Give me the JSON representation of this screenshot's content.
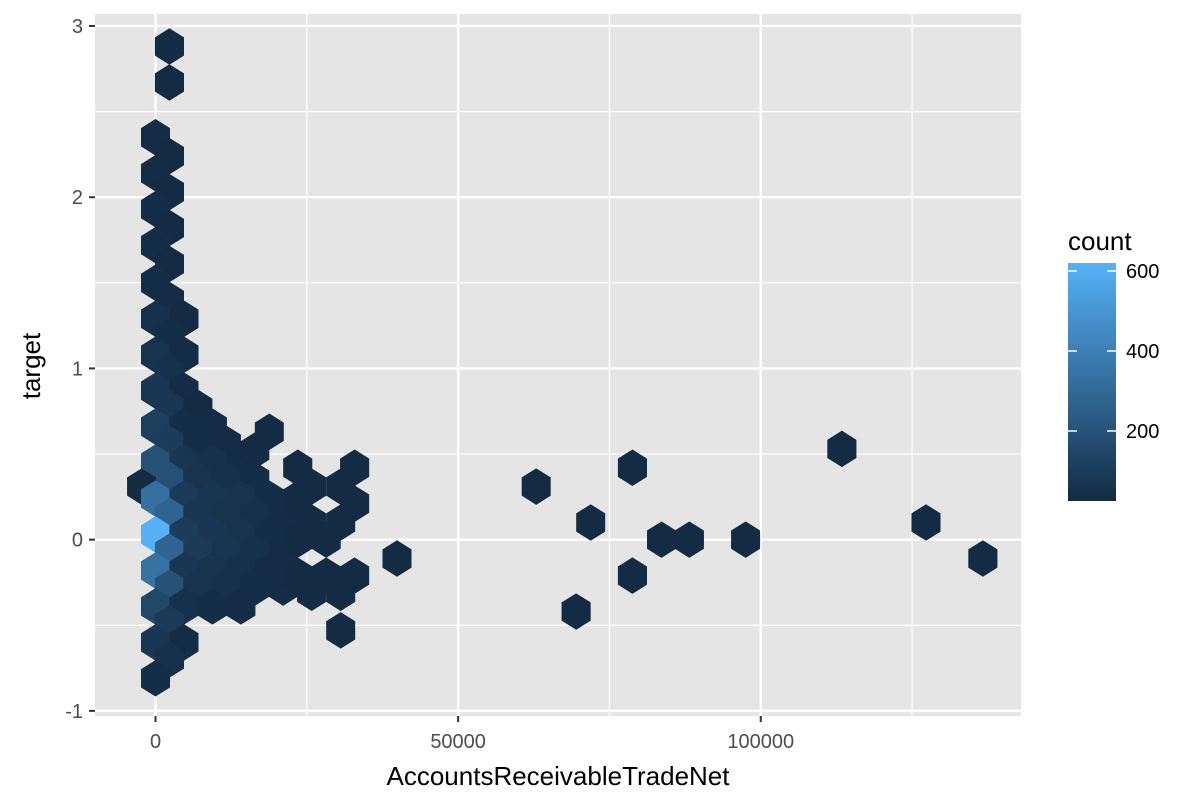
{
  "chart_data": {
    "type": "heatmap",
    "geom": "hexbin",
    "title": "",
    "xlabel": "AccountsReceivableTradeNet",
    "ylabel": "target",
    "xlim": [
      -10000,
      143000
    ],
    "ylim": [
      -1.03,
      3.07
    ],
    "x_ticks": [
      0,
      50000,
      100000
    ],
    "x_tick_labels": [
      "0",
      "50000",
      "100000"
    ],
    "y_ticks": [
      -1,
      0,
      1,
      2,
      3
    ],
    "y_tick_labels": [
      "-1",
      "0",
      "1",
      "2",
      "3"
    ],
    "x_minor_ticks": [
      25000,
      75000,
      125000
    ],
    "y_minor_ticks": [
      -0.5,
      0.5,
      1.5,
      2.5
    ],
    "grid": true,
    "panel_background": "#e5e5e5",
    "grid_color": "#ffffff",
    "hex_width": 4700,
    "hex_height": 0.209,
    "legend": {
      "title": "count",
      "placement": "right",
      "min": 25,
      "max": 620,
      "ticks": [
        200,
        400,
        600
      ],
      "tick_labels": [
        "200",
        "400",
        "600"
      ],
      "low_color": "#132b43",
      "high_color": "#56b1f7"
    },
    "hexes": [
      {
        "x": 2300,
        "y": 2.88,
        "count": 25
      },
      {
        "x": 2300,
        "y": 2.67,
        "count": 25
      },
      {
        "x": 0,
        "y": 2.35,
        "count": 30
      },
      {
        "x": 2300,
        "y": 2.24,
        "count": 25
      },
      {
        "x": 0,
        "y": 2.14,
        "count": 30
      },
      {
        "x": 2300,
        "y": 2.03,
        "count": 25
      },
      {
        "x": 0,
        "y": 1.93,
        "count": 40
      },
      {
        "x": 2300,
        "y": 1.82,
        "count": 25
      },
      {
        "x": 0,
        "y": 1.72,
        "count": 40
      },
      {
        "x": 2300,
        "y": 1.61,
        "count": 25
      },
      {
        "x": 0,
        "y": 1.5,
        "count": 40
      },
      {
        "x": 2300,
        "y": 1.4,
        "count": 30
      },
      {
        "x": 0,
        "y": 1.29,
        "count": 50
      },
      {
        "x": 4700,
        "y": 1.29,
        "count": 25
      },
      {
        "x": 2300,
        "y": 1.19,
        "count": 40
      },
      {
        "x": 0,
        "y": 1.08,
        "count": 60
      },
      {
        "x": 4700,
        "y": 1.08,
        "count": 30
      },
      {
        "x": 2300,
        "y": 0.98,
        "count": 50
      },
      {
        "x": 0,
        "y": 0.87,
        "count": 80
      },
      {
        "x": 4700,
        "y": 0.87,
        "count": 30
      },
      {
        "x": 2300,
        "y": 0.77,
        "count": 80
      },
      {
        "x": 7000,
        "y": 0.77,
        "count": 25
      },
      {
        "x": 0,
        "y": 0.66,
        "count": 110
      },
      {
        "x": 4700,
        "y": 0.66,
        "count": 40
      },
      {
        "x": 9400,
        "y": 0.66,
        "count": 30
      },
      {
        "x": 2300,
        "y": 0.56,
        "count": 100
      },
      {
        "x": 7000,
        "y": 0.56,
        "count": 40
      },
      {
        "x": 11700,
        "y": 0.56,
        "count": 30
      },
      {
        "x": 18800,
        "y": 0.63,
        "count": 25
      },
      {
        "x": 0,
        "y": 0.45,
        "count": 200
      },
      {
        "x": 4700,
        "y": 0.45,
        "count": 70
      },
      {
        "x": 9400,
        "y": 0.45,
        "count": 50
      },
      {
        "x": 14100,
        "y": 0.45,
        "count": 40
      },
      {
        "x": 16400,
        "y": 0.52,
        "count": 25
      },
      {
        "x": 2300,
        "y": 0.35,
        "count": 190
      },
      {
        "x": 7000,
        "y": 0.35,
        "count": 60
      },
      {
        "x": 11700,
        "y": 0.35,
        "count": 50
      },
      {
        "x": 16400,
        "y": 0.35,
        "count": 40
      },
      {
        "x": -2300,
        "y": 0.31,
        "count": 25
      },
      {
        "x": 0,
        "y": 0.24,
        "count": 330
      },
      {
        "x": 4700,
        "y": 0.24,
        "count": 90
      },
      {
        "x": 9400,
        "y": 0.24,
        "count": 70
      },
      {
        "x": 14100,
        "y": 0.24,
        "count": 60
      },
      {
        "x": 18800,
        "y": 0.24,
        "count": 40
      },
      {
        "x": 23500,
        "y": 0.24,
        "count": 25
      },
      {
        "x": 2300,
        "y": 0.14,
        "count": 280
      },
      {
        "x": 7000,
        "y": 0.14,
        "count": 80
      },
      {
        "x": 11700,
        "y": 0.14,
        "count": 60
      },
      {
        "x": 16400,
        "y": 0.14,
        "count": 50
      },
      {
        "x": 21100,
        "y": 0.14,
        "count": 30
      },
      {
        "x": 0,
        "y": 0.03,
        "count": 620
      },
      {
        "x": 4700,
        "y": 0.03,
        "count": 100
      },
      {
        "x": 9400,
        "y": 0.03,
        "count": 80
      },
      {
        "x": 14100,
        "y": 0.03,
        "count": 60
      },
      {
        "x": 18800,
        "y": 0.03,
        "count": 40
      },
      {
        "x": 2300,
        "y": -0.07,
        "count": 280
      },
      {
        "x": 7000,
        "y": -0.07,
        "count": 90
      },
      {
        "x": 11700,
        "y": -0.07,
        "count": 70
      },
      {
        "x": 16400,
        "y": -0.07,
        "count": 50
      },
      {
        "x": 21100,
        "y": -0.07,
        "count": 30
      },
      {
        "x": 0,
        "y": -0.18,
        "count": 340
      },
      {
        "x": 4700,
        "y": -0.18,
        "count": 80
      },
      {
        "x": 9400,
        "y": -0.18,
        "count": 60
      },
      {
        "x": 14100,
        "y": -0.18,
        "count": 50
      },
      {
        "x": 18800,
        "y": -0.18,
        "count": 30
      },
      {
        "x": 2300,
        "y": -0.28,
        "count": 200
      },
      {
        "x": 7000,
        "y": -0.28,
        "count": 60
      },
      {
        "x": 11700,
        "y": -0.28,
        "count": 50
      },
      {
        "x": 16400,
        "y": -0.28,
        "count": 40
      },
      {
        "x": 21100,
        "y": -0.28,
        "count": 30
      },
      {
        "x": 0,
        "y": -0.39,
        "count": 150
      },
      {
        "x": 4700,
        "y": -0.39,
        "count": 50
      },
      {
        "x": 9400,
        "y": -0.39,
        "count": 40
      },
      {
        "x": 14100,
        "y": -0.39,
        "count": 30
      },
      {
        "x": 2300,
        "y": -0.49,
        "count": 90
      },
      {
        "x": 0,
        "y": -0.6,
        "count": 80
      },
      {
        "x": 4700,
        "y": -0.6,
        "count": 30
      },
      {
        "x": 2300,
        "y": -0.7,
        "count": 50
      },
      {
        "x": 0,
        "y": -0.81,
        "count": 40
      },
      {
        "x": 23500,
        "y": 0.42,
        "count": 25
      },
      {
        "x": 32900,
        "y": 0.42,
        "count": 25
      },
      {
        "x": 25800,
        "y": 0.31,
        "count": 25
      },
      {
        "x": 30600,
        "y": 0.31,
        "count": 25
      },
      {
        "x": 23500,
        "y": 0.21,
        "count": 25
      },
      {
        "x": 32900,
        "y": 0.21,
        "count": 25
      },
      {
        "x": 25800,
        "y": 0.1,
        "count": 25
      },
      {
        "x": 30600,
        "y": 0.1,
        "count": 25
      },
      {
        "x": 23500,
        "y": 0.0,
        "count": 25
      },
      {
        "x": 28200,
        "y": 0.0,
        "count": 25
      },
      {
        "x": 23500,
        "y": -0.21,
        "count": 25
      },
      {
        "x": 28200,
        "y": -0.21,
        "count": 25
      },
      {
        "x": 32900,
        "y": -0.21,
        "count": 25
      },
      {
        "x": 25800,
        "y": -0.31,
        "count": 25
      },
      {
        "x": 30600,
        "y": -0.31,
        "count": 25
      },
      {
        "x": 39900,
        "y": -0.11,
        "count": 25
      },
      {
        "x": 30600,
        "y": -0.53,
        "count": 25
      },
      {
        "x": 62900,
        "y": 0.31,
        "count": 25
      },
      {
        "x": 78800,
        "y": 0.42,
        "count": 25
      },
      {
        "x": 71900,
        "y": 0.1,
        "count": 25
      },
      {
        "x": 83600,
        "y": 0.0,
        "count": 25
      },
      {
        "x": 88200,
        "y": 0.0,
        "count": 25
      },
      {
        "x": 97500,
        "y": 0.0,
        "count": 25
      },
      {
        "x": 78800,
        "y": -0.21,
        "count": 25
      },
      {
        "x": 69500,
        "y": -0.42,
        "count": 25
      },
      {
        "x": 113400,
        "y": 0.53,
        "count": 25
      },
      {
        "x": 127300,
        "y": 0.1,
        "count": 25
      },
      {
        "x": 136700,
        "y": -0.11,
        "count": 25
      }
    ]
  }
}
